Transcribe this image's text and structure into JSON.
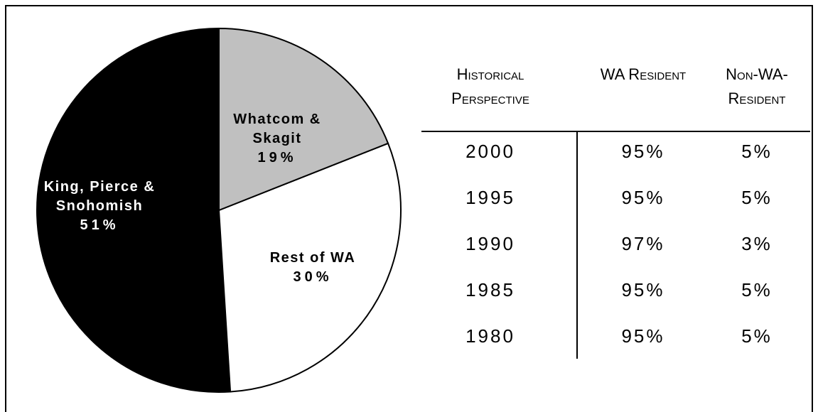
{
  "chart_data": {
    "type": "pie",
    "categories": [
      "Whatcom & Skagit",
      "Rest of WA",
      "King, Pierce & Snohomish"
    ],
    "values": [
      19,
      30,
      51
    ],
    "value_labels": [
      "19%",
      "30%",
      "51%"
    ],
    "colors": [
      "#c0c0c0",
      "#ffffff",
      "#000000"
    ],
    "label_colors": [
      "#000000",
      "#000000",
      "#ffffff"
    ]
  },
  "table": {
    "header": [
      "Historical Perspective",
      "WA Resident",
      "Non-WA-Resident"
    ],
    "rows": [
      [
        "2000",
        "95%",
        "5%"
      ],
      [
        "1995",
        "95%",
        "5%"
      ],
      [
        "1990",
        "97%",
        "3%"
      ],
      [
        "1985",
        "95%",
        "5%"
      ],
      [
        "1980",
        "95%",
        "5%"
      ]
    ]
  }
}
